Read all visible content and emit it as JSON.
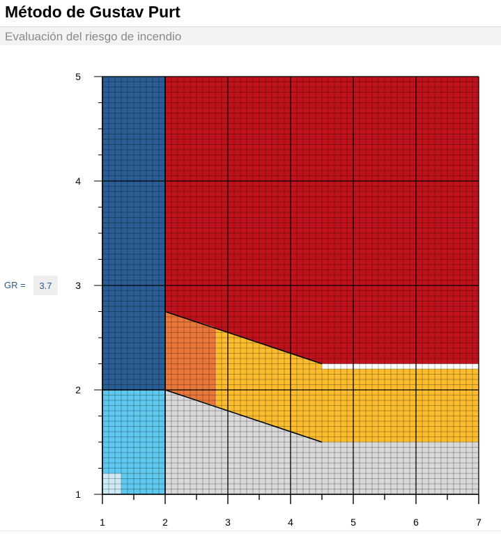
{
  "header": {
    "title": "Método de Gustav Purt",
    "subtitle": "Evaluación del riesgo de incendio"
  },
  "gr": {
    "label": "GR =",
    "value": "3.7"
  },
  "colors": {
    "blue_dark": "#295d94",
    "blue_light": "#5ec8ee",
    "blue_pale": "#cde9f6",
    "red": "#c0121c",
    "orange": "#e9773a",
    "yellow": "#fbbc2e",
    "gray": "#d9d9d9",
    "grid_minor": "#000000",
    "divider": "#000000"
  },
  "chart_data": {
    "type": "heatmap",
    "title": "",
    "xlabel": "",
    "ylabel": "",
    "xlim": [
      1,
      7
    ],
    "ylim": [
      1,
      5
    ],
    "x_ticks": [
      "1",
      "2",
      "3",
      "4",
      "5",
      "6",
      "7"
    ],
    "y_ticks": [
      "1",
      "2",
      "3",
      "4",
      "5"
    ],
    "x_minor_step": 0.1,
    "y_minor_step": 0.05,
    "grid": true,
    "regions": [
      {
        "color": "blue_dark",
        "polygon": [
          [
            1,
            2
          ],
          [
            2,
            2
          ],
          [
            2,
            5
          ],
          [
            1,
            5
          ]
        ]
      },
      {
        "color": "blue_light",
        "polygon": [
          [
            1,
            1
          ],
          [
            2,
            1
          ],
          [
            2,
            2
          ],
          [
            1,
            2
          ]
        ]
      },
      {
        "color": "blue_pale",
        "polygon": [
          [
            1,
            1
          ],
          [
            1.3,
            1
          ],
          [
            1.3,
            1.2
          ],
          [
            1,
            1.2
          ]
        ]
      },
      {
        "color": "red",
        "polygon": [
          [
            2,
            2.75
          ],
          [
            4.5,
            2.25
          ],
          [
            7,
            2.25
          ],
          [
            7,
            5
          ],
          [
            2,
            5
          ]
        ]
      },
      {
        "color": "gray",
        "polygon": [
          [
            2,
            1
          ],
          [
            7,
            1
          ],
          [
            7,
            1.5
          ],
          [
            4.5,
            1.5
          ],
          [
            2,
            2
          ]
        ]
      },
      {
        "color": "yellow",
        "polygon": [
          [
            2,
            2
          ],
          [
            4.5,
            1.5
          ],
          [
            7,
            1.5
          ],
          [
            7,
            2.2
          ],
          [
            4.5,
            2.2
          ],
          [
            4.5,
            2.25
          ],
          [
            2,
            2.75
          ]
        ]
      },
      {
        "color": "orange",
        "polygon": [
          [
            2,
            2.75
          ],
          [
            2.8,
            2.6
          ],
          [
            2.8,
            1.85
          ],
          [
            2,
            2
          ]
        ]
      }
    ],
    "divider_lines": [
      {
        "from": [
          2,
          2.75
        ],
        "to": [
          4.5,
          2.25
        ]
      },
      {
        "from": [
          2,
          2
        ],
        "to": [
          4.5,
          1.5
        ]
      }
    ],
    "boundaries": [
      {
        "from": [
          2,
          1
        ],
        "to": [
          2,
          5
        ]
      },
      {
        "from": [
          1,
          2
        ],
        "to": [
          2,
          2
        ]
      }
    ]
  }
}
